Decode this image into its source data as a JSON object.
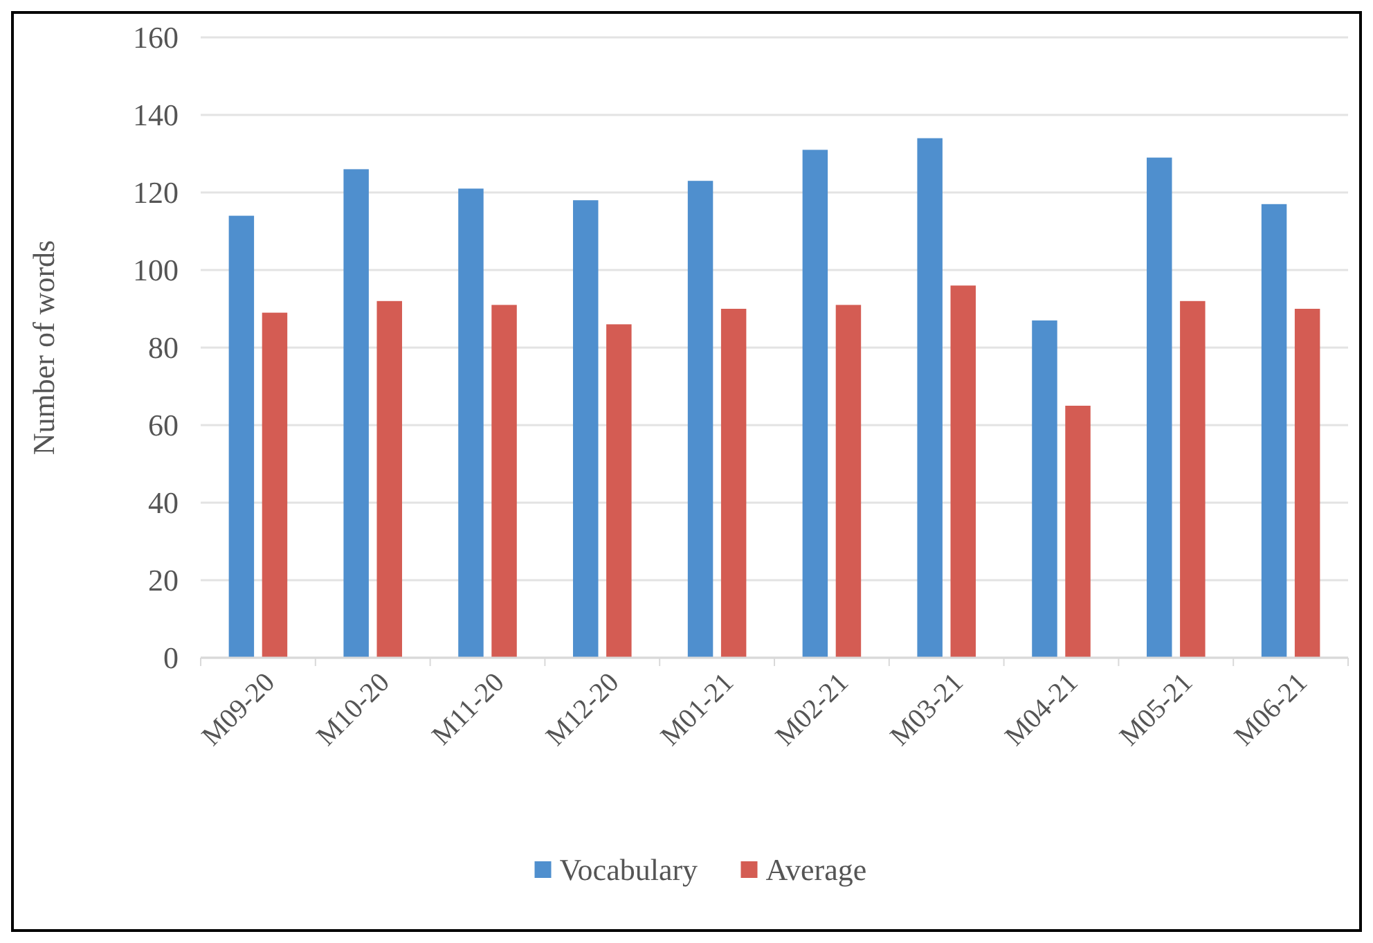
{
  "chart_data": {
    "type": "bar",
    "ylabel": "Number of words",
    "categories": [
      "M09-20",
      "M10-20",
      "M11-20",
      "M12-20",
      "M01-21",
      "M02-21",
      "M03-21",
      "M04-21",
      "M05-21",
      "M06-21"
    ],
    "series": [
      {
        "name": "Vocabulary",
        "color": "#4f8fce",
        "values": [
          114,
          126,
          121,
          118,
          123,
          131,
          134,
          87,
          129,
          117
        ]
      },
      {
        "name": "Average",
        "color": "#d45c53",
        "values": [
          89,
          92,
          91,
          86,
          90,
          91,
          96,
          65,
          92,
          90
        ]
      }
    ],
    "ylim": [
      0,
      160
    ],
    "yticks": [
      0,
      20,
      40,
      60,
      80,
      100,
      120,
      140,
      160
    ],
    "grid": "y",
    "legend": "bottom"
  }
}
